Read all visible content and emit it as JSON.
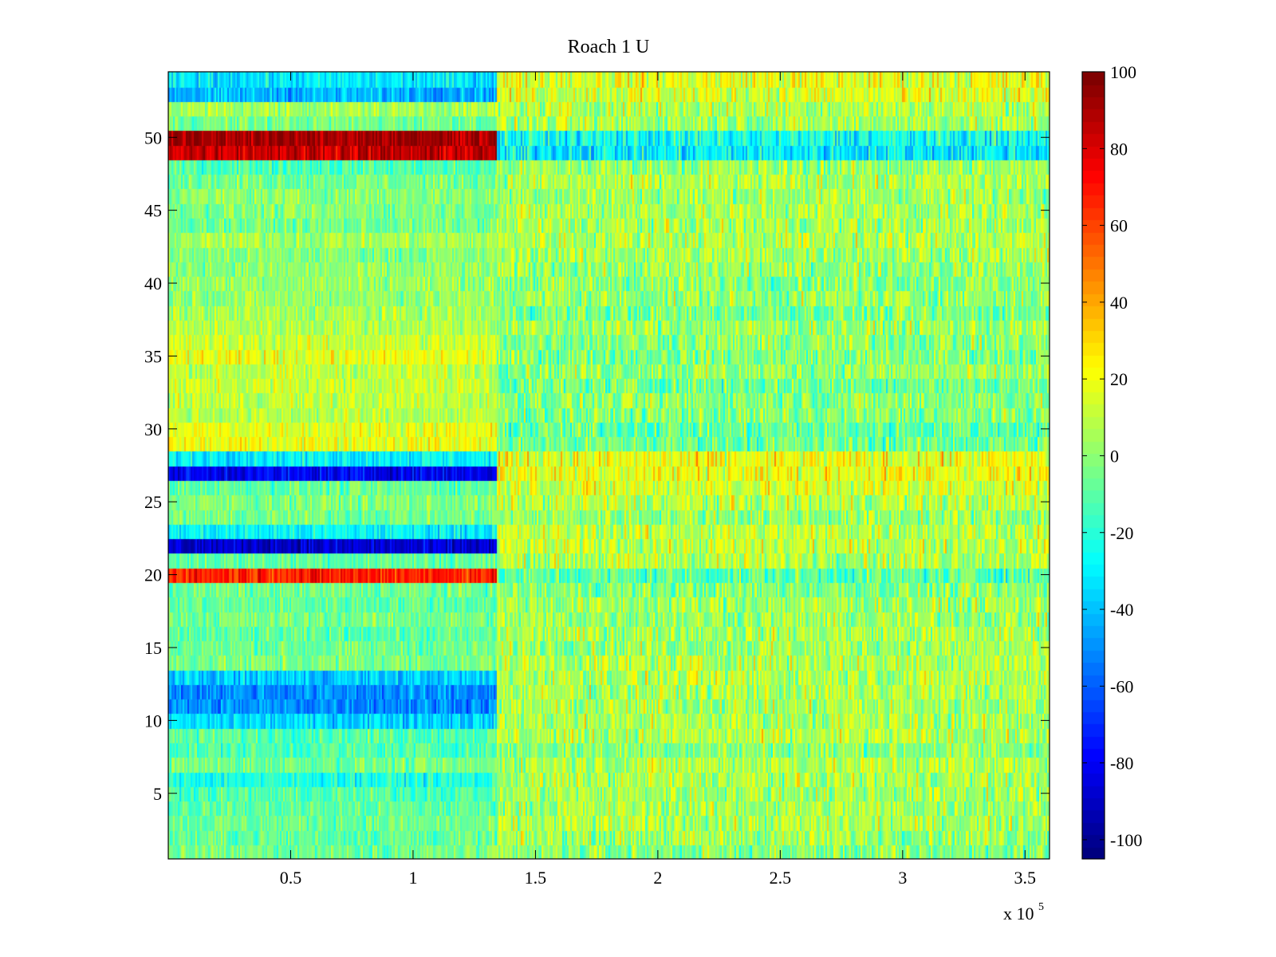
{
  "chart_data": {
    "type": "heatmap",
    "title": "Roach 1 U",
    "xlabel": "",
    "ylabel": "",
    "x_exponent_label": "x 10",
    "x_exponent_power": "5",
    "x_scale": 100000,
    "xlim": [
      0,
      3.6
    ],
    "ylim": [
      0.5,
      54.5
    ],
    "x_ticks": [
      0.5,
      1,
      1.5,
      2,
      2.5,
      3,
      3.5
    ],
    "x_tick_labels": [
      "0.5",
      "1",
      "1.5",
      "2",
      "2.5",
      "3",
      "3.5"
    ],
    "y_ticks": [
      5,
      10,
      15,
      20,
      25,
      30,
      35,
      40,
      45,
      50
    ],
    "y_tick_labels": [
      "5",
      "10",
      "15",
      "20",
      "25",
      "30",
      "35",
      "40",
      "45",
      "50"
    ],
    "rows": 54,
    "segment_boundary_x": 1.34,
    "colormap": "jet",
    "clim": [
      -105,
      100
    ],
    "colorbar": {
      "ticks": [
        100,
        80,
        60,
        40,
        20,
        0,
        -20,
        -40,
        -60,
        -80,
        -100
      ],
      "tick_labels": [
        "100",
        "80",
        "60",
        "40",
        "20",
        "0",
        "-20",
        "-40",
        "-60",
        "-80",
        "-100"
      ]
    },
    "row_mean_values": {
      "segment_1": [
        -5,
        -8,
        -6,
        -9,
        -12,
        -22,
        -5,
        -12,
        -10,
        -35,
        -50,
        -50,
        -38,
        -3,
        -6,
        -10,
        -4,
        -8,
        -6,
        68,
        -8,
        -88,
        -28,
        -5,
        -2,
        -8,
        -80,
        -28,
        20,
        18,
        8,
        10,
        12,
        10,
        18,
        12,
        8,
        5,
        2,
        3,
        0,
        -2,
        5,
        -5,
        -2,
        0,
        -4,
        -12,
        85,
        92,
        -4,
        5,
        -42,
        -32
      ],
      "segment_2": [
        -2,
        4,
        6,
        5,
        5,
        6,
        8,
        0,
        7,
        6,
        5,
        6,
        8,
        8,
        4,
        6,
        3,
        4,
        -2,
        -10,
        8,
        10,
        10,
        2,
        8,
        15,
        20,
        18,
        -6,
        -8,
        -2,
        0,
        -5,
        2,
        -2,
        0,
        3,
        -4,
        2,
        0,
        2,
        5,
        8,
        5,
        6,
        4,
        6,
        2,
        -30,
        -25,
        5,
        8,
        15,
        18
      ]
    },
    "noise_amplitude": {
      "segment_1": 14,
      "segment_2": 20
    }
  }
}
